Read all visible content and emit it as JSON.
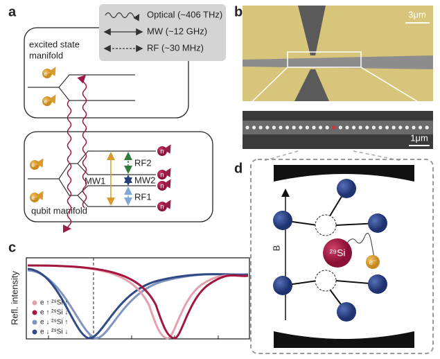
{
  "panel_a": {
    "label": "a",
    "legend": [
      "Optical (~406 THz)",
      "MW (~12 GHz)",
      "RF (~30 MHz)"
    ],
    "excited_label": [
      "excited state",
      "manifold"
    ],
    "qubit_label": "qubit manifold",
    "transitions": [
      "MW1",
      "RF2",
      "MW2",
      "RF1"
    ],
    "electrons": [
      "e⁻",
      "e⁻",
      "e⁻",
      "e⁻"
    ],
    "nuclei": [
      "n",
      "n",
      "n",
      "n"
    ]
  },
  "panel_b": {
    "label": "b",
    "scale_top": "3μm",
    "scale_bottom": "1μm"
  },
  "panel_c": {
    "label": "c",
    "ylabel": "Refl. intensity",
    "legend": [
      "e ↑ ²⁹Si ↑",
      "e ↑ ²⁹Si ↓",
      "e ↓ ²⁹Si ↑",
      "e ↓ ²⁹Si ↓"
    ]
  },
  "panel_d": {
    "label": "d",
    "field": "B",
    "atom": "²⁹Si",
    "electron": "e⁻"
  }
}
